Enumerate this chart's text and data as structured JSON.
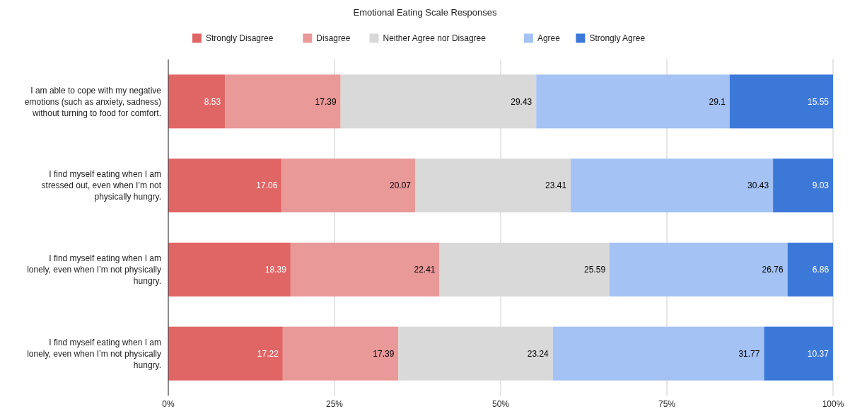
{
  "chart_data": {
    "type": "bar",
    "title": "Emotional Eating Scale Responses",
    "orientation": "horizontal",
    "stacked": true,
    "categories": [
      "I am able to cope with my negative emotions (such as anxiety, sadness) without turning to food for comfort.",
      "I find myself eating when I am stressed out, even when I’m not physically hungry.",
      "I find myself eating when I am lonely, even when I’m not physically hungry.",
      "I find myself eating when I am lonely, even when I’m not physically hungry."
    ],
    "series": [
      {
        "name": "Strongly Disagree",
        "color": "#e06666",
        "values": [
          8.53,
          17.06,
          18.39,
          17.22
        ]
      },
      {
        "name": "Disagree",
        "color": "#ea9999",
        "values": [
          17.39,
          20.07,
          22.41,
          17.39
        ]
      },
      {
        "name": "Neither Agree nor Disagree",
        "color": "#d9d9d9",
        "values": [
          29.43,
          23.41,
          25.59,
          23.24
        ]
      },
      {
        "name": "Agree",
        "color": "#a4c2f4",
        "values": [
          29.1,
          30.43,
          26.76,
          31.77
        ]
      },
      {
        "name": "Strongly Agree",
        "color": "#3c78d8",
        "values": [
          15.55,
          9.03,
          6.86,
          10.37
        ]
      }
    ],
    "xlim": [
      0,
      100
    ],
    "xticks": [
      {
        "value": 0,
        "label": "0%"
      },
      {
        "value": 25,
        "label": "25%"
      },
      {
        "value": 50,
        "label": "50%"
      },
      {
        "value": 75,
        "label": "75%"
      },
      {
        "value": 100,
        "label": "100%"
      }
    ],
    "grid": "x",
    "legend": "top",
    "data_labels": true
  }
}
